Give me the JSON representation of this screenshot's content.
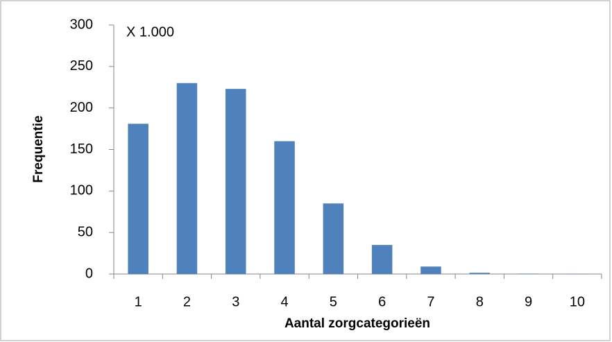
{
  "chart_data": {
    "type": "bar",
    "annotation": "X 1.000",
    "y_label": "Frequentie",
    "x_label": "Aantal zorgcategorieën",
    "categories": [
      "1",
      "2",
      "3",
      "4",
      "5",
      "6",
      "7",
      "8",
      "9",
      "10"
    ],
    "values": [
      181,
      230,
      223,
      160,
      85,
      35,
      9,
      1.5,
      0.5,
      0.3
    ],
    "color": "#4f81bd",
    "ylim": [
      0,
      300
    ],
    "yticks": [
      0,
      50,
      100,
      150,
      200,
      250,
      300
    ],
    "grid": false
  }
}
